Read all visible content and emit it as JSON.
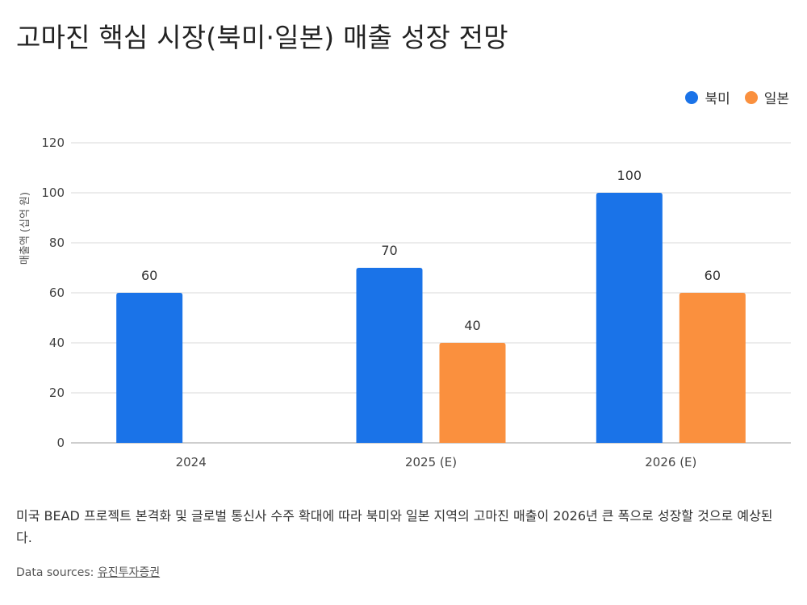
{
  "title": "고마진 핵심 시장(북미·일본) 매출 성장 전망",
  "caption": "미국 BEAD 프로젝트 본격화 및 글로벌 통신사 수주 확대에 따라 북미와 일본 지역의 고마진 매출이 2026년 큰 폭으로 성장할 것으로 예상된다.",
  "source": {
    "label": "Data sources:",
    "link_text": "유진투자증권"
  },
  "chart_data": {
    "type": "bar",
    "title": "고마진 핵심 시장(북미·일본) 매출 성장 전망",
    "ylabel": "매출액 (십억 원)",
    "xlabel": "",
    "categories": [
      "2024",
      "2025 (E)",
      "2026 (E)"
    ],
    "series": [
      {
        "name": "북미",
        "color": "#1a73e8",
        "values": [
          60,
          70,
          100
        ]
      },
      {
        "name": "일본",
        "color": "#fa903e",
        "values": [
          null,
          40,
          60
        ]
      }
    ],
    "ylim": [
      0,
      120
    ],
    "yticks": [
      0,
      20,
      40,
      60,
      80,
      100,
      120
    ],
    "grid": true,
    "legend_position": "top-right",
    "data_labels": true
  }
}
